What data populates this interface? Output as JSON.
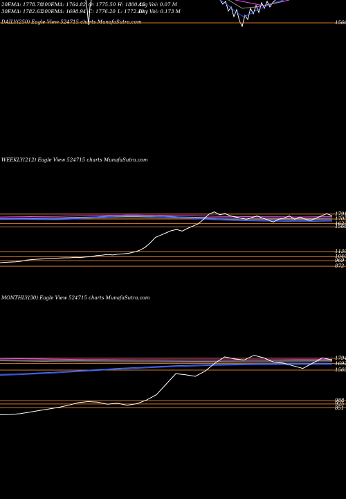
{
  "header": {
    "ema20": "20EMA: 1778.78",
    "ema100": "100EMA: 1764.82",
    "open": "O: 1775.50",
    "high": "H: 1800.45",
    "avgvol": "Avg Vol: 0.07 M",
    "ema30": "30EMA: 1782.63",
    "ema200": "200EMA: 1698.94",
    "close": "C: 1776.20",
    "low": "L: 1772.40",
    "dayvol": "Day Vol: 0.173 M"
  },
  "panels": {
    "daily": {
      "title": "DAILY(250) Eagle  View  524715 charts MunafaSutra.com",
      "price_label": "1566"
    },
    "weekly": {
      "title": "WEEKLY(212) Eagle  View  524715 charts MunafaSutra.com"
    },
    "monthly": {
      "title": "MONTHLY(30) Eagle  View  524715 charts MunafaSutra.com"
    }
  },
  "colors": {
    "background": "#000000",
    "price": "#ffffff",
    "ema_blue": "#3a5cff",
    "ema_magenta": "#ff44ff",
    "level_orange": "#d27a2a"
  },
  "chart_data": [
    {
      "type": "line",
      "name": "weekly",
      "ylim": [
        800,
        1900
      ],
      "price_levels": [
        1791,
        1705,
        1623,
        1566,
        1130,
        1040,
        969,
        872
      ],
      "price_labels": [
        "1791",
        "1705",
        "1623",
        "1566",
        "1130",
        "1040",
        "969",
        "872"
      ],
      "close": [
        935,
        940,
        945,
        950,
        960,
        980,
        990,
        995,
        1000,
        1005,
        1010,
        1015,
        1020,
        1020,
        1030,
        1025,
        1035,
        1040,
        1060,
        1065,
        1080,
        1070,
        1085,
        1090,
        1100,
        1120,
        1150,
        1200,
        1280,
        1380,
        1420,
        1460,
        1500,
        1520,
        1490,
        1540,
        1580,
        1620,
        1700,
        1790,
        1830,
        1780,
        1800,
        1760,
        1740,
        1720,
        1700,
        1730,
        1760,
        1720,
        1690,
        1650,
        1700,
        1720,
        1760,
        1700,
        1740,
        1700,
        1680,
        1720,
        1760,
        1800,
        1760
      ],
      "ema_blue": [
        1700,
        1700,
        1698,
        1696,
        1694,
        1692,
        1700,
        1710,
        1720,
        1735,
        1750,
        1760,
        1760,
        1755,
        1745,
        1735,
        1720,
        1710,
        1700,
        1690,
        1680,
        1675,
        1670,
        1668,
        1666,
        1662,
        1658,
        1660,
        1664,
        1668
      ],
      "ema_magenta": [
        1740,
        1742,
        1745,
        1748,
        1750,
        1752,
        1756,
        1760,
        1764,
        1768,
        1770,
        1772,
        1772,
        1770,
        1768,
        1766,
        1764,
        1760,
        1756,
        1752,
        1750,
        1748,
        1746,
        1744,
        1744,
        1742,
        1740,
        1742,
        1744,
        1746
      ]
    },
    {
      "type": "line",
      "name": "monthly",
      "ylim": [
        700,
        1950
      ],
      "price_levels": [
        1794,
        1692,
        1569,
        988,
        925,
        851
      ],
      "price_labels": [
        "1794",
        "1692",
        "1569",
        "988",
        "925",
        "851"
      ],
      "close": [
        720,
        725,
        740,
        770,
        800,
        830,
        860,
        900,
        950,
        970,
        960,
        920,
        940,
        900,
        930,
        1000,
        1100,
        1300,
        1500,
        1480,
        1450,
        1550,
        1700,
        1820,
        1780,
        1760,
        1850,
        1800,
        1720,
        1700,
        1650,
        1600,
        1700,
        1800,
        1760
      ],
      "ema_blue": [
        1470,
        1480,
        1495,
        1510,
        1530,
        1550,
        1570,
        1590,
        1605,
        1620,
        1635,
        1645,
        1655,
        1662,
        1668,
        1672,
        1674,
        1676,
        1676,
        1678
      ],
      "ema_magenta": [
        1790,
        1786,
        1780,
        1775,
        1772,
        1770,
        1768,
        1766,
        1765,
        1764,
        1763,
        1762,
        1762,
        1763,
        1764,
        1765,
        1766,
        1768,
        1770,
        1772
      ]
    }
  ]
}
